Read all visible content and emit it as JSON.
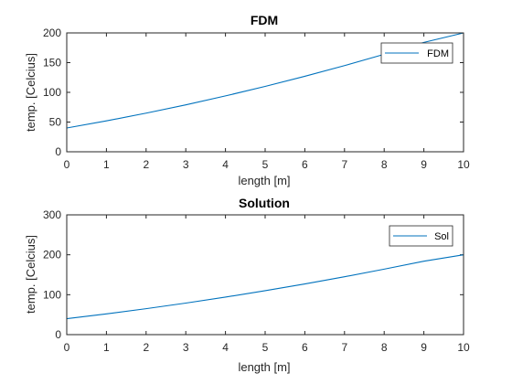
{
  "chart_data": [
    {
      "type": "line",
      "title": "FDM",
      "xlabel": "length [m]",
      "ylabel": "temp. [Celcius]",
      "xlim": [
        0,
        10
      ],
      "ylim": [
        0,
        200
      ],
      "xticks": [
        0,
        1,
        2,
        3,
        4,
        5,
        6,
        7,
        8,
        9,
        10
      ],
      "yticks": [
        0,
        50,
        100,
        150,
        200
      ],
      "grid": false,
      "legend_position": "top-right",
      "series": [
        {
          "name": "FDM",
          "color": "#0072BD",
          "x": [
            0,
            1,
            2,
            3,
            4,
            5,
            6,
            7,
            8,
            9,
            10
          ],
          "y": [
            40,
            52,
            65,
            79,
            94,
            110,
            127,
            145,
            164,
            184,
            200
          ]
        }
      ]
    },
    {
      "type": "line",
      "title": "Solution",
      "xlabel": "length [m]",
      "ylabel": "temp. [Celcius]",
      "xlim": [
        0,
        10
      ],
      "ylim": [
        0,
        300
      ],
      "xticks": [
        0,
        1,
        2,
        3,
        4,
        5,
        6,
        7,
        8,
        9,
        10
      ],
      "yticks": [
        0,
        100,
        200,
        300
      ],
      "grid": false,
      "legend_position": "top-right",
      "series": [
        {
          "name": "Sol",
          "color": "#0072BD",
          "x": [
            0,
            1,
            2,
            3,
            4,
            5,
            6,
            7,
            8,
            9,
            10
          ],
          "y": [
            40,
            52,
            65,
            79,
            94,
            110,
            127,
            145,
            164,
            184,
            200
          ]
        }
      ]
    }
  ]
}
